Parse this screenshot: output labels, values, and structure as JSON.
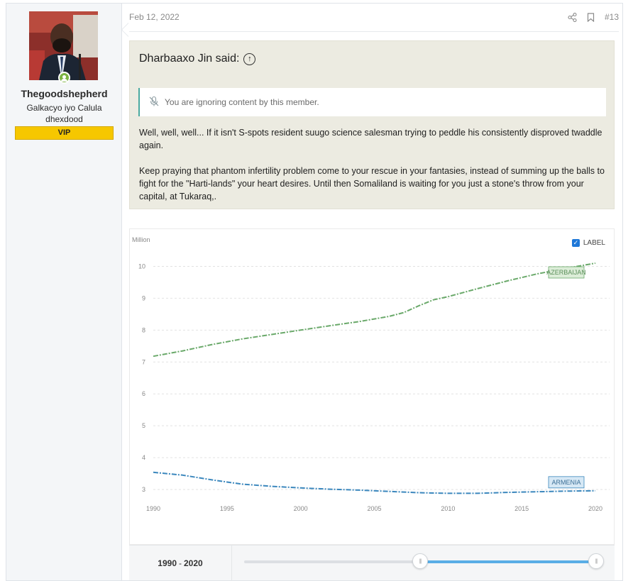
{
  "user": {
    "name": "Thegoodshepherd",
    "title": "Galkacyo iyo Calula dhexdood",
    "badge": "VIP",
    "status": "online"
  },
  "post": {
    "date": "Feb 12, 2022",
    "number": "#13",
    "tools": [
      "share-icon",
      "bookmark-icon"
    ]
  },
  "quote": {
    "author_line": "Dharbaaxo Jin said:",
    "ignored_notice": "You are ignoring content by this member.",
    "paragraphs": [
      "Well, well, well... If it isn't S-spots resident suugo science salesman trying to peddle his consistently disproved twaddle again.",
      "Keep praying that phantom infertility problem come to your rescue in your fantasies, instead of summing up the balls to fight for the \"Harti-lands\" your heart desires. Until then Somaliland is waiting for you just a stone's throw from your capital, at Tukaraq,."
    ]
  },
  "chart_data": {
    "type": "line",
    "ylabel": "Million",
    "xlim": [
      1990,
      2020
    ],
    "ylim": [
      2.6,
      10.5
    ],
    "xticks": [
      1990,
      1995,
      2000,
      2005,
      2010,
      2015,
      2020
    ],
    "yticks": [
      3,
      4,
      5,
      6,
      7,
      8,
      9,
      10
    ],
    "grid": true,
    "label_toggle": "LABEL",
    "label_toggle_checked": true,
    "series": [
      {
        "name": "AZERBAIJAN",
        "color": "#6aa96a",
        "x": [
          1990,
          1992,
          1994,
          1996,
          1998,
          2000,
          2002,
          2004,
          2006,
          2007,
          2008,
          2009,
          2010,
          2012,
          2014,
          2016,
          2018,
          2020
        ],
        "values": [
          7.18,
          7.35,
          7.55,
          7.72,
          7.86,
          8.0,
          8.14,
          8.27,
          8.43,
          8.55,
          8.76,
          8.95,
          9.05,
          9.3,
          9.54,
          9.76,
          9.94,
          10.1
        ]
      },
      {
        "name": "ARMENIA",
        "color": "#3b87bd",
        "x": [
          1990,
          1992,
          1994,
          1996,
          1998,
          2000,
          2002,
          2004,
          2006,
          2008,
          2010,
          2012,
          2014,
          2016,
          2018,
          2020
        ],
        "values": [
          3.54,
          3.45,
          3.3,
          3.17,
          3.1,
          3.05,
          3.01,
          2.98,
          2.94,
          2.9,
          2.88,
          2.88,
          2.91,
          2.93,
          2.95,
          2.96
        ]
      }
    ]
  },
  "range": {
    "start": "1990",
    "sep": "-",
    "end": "2020",
    "fill_start_fraction": 0.5,
    "fill_end_fraction": 1.0
  }
}
